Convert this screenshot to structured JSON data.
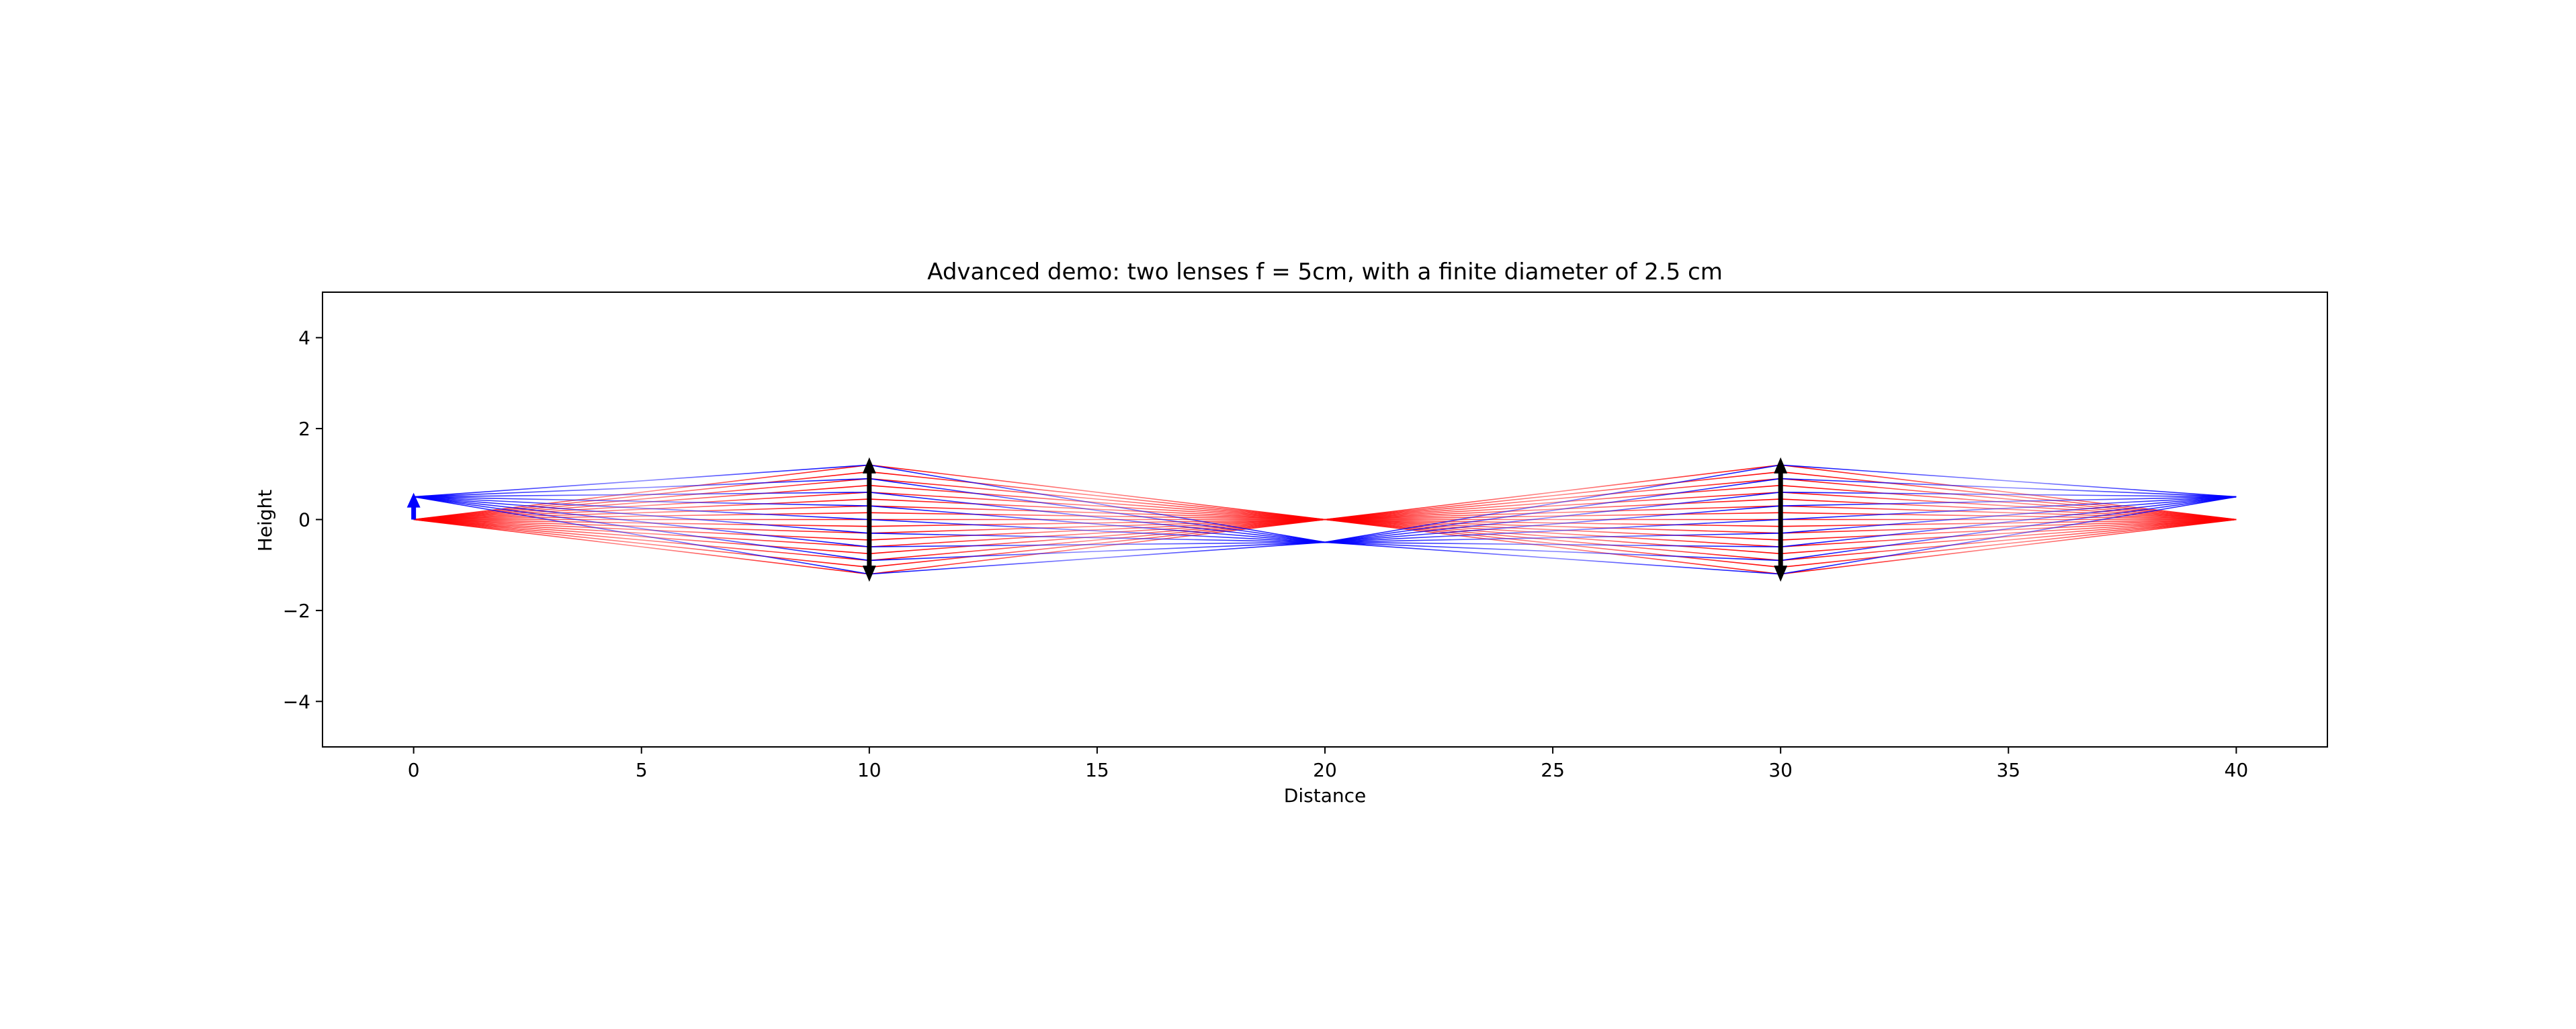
{
  "chart_data": {
    "type": "line",
    "title": "Advanced demo: two lenses f = 5cm, with a finite diameter of 2.5 cm",
    "xlabel": "Distance",
    "ylabel": "Height",
    "xlim": [
      -2,
      42
    ],
    "ylim": [
      -5,
      5
    ],
    "xticks": [
      0,
      5,
      10,
      15,
      20,
      25,
      30,
      35,
      40
    ],
    "yticks": [
      -4,
      -2,
      0,
      2,
      4
    ],
    "xtick_labels": [
      "0",
      "5",
      "10",
      "15",
      "20",
      "25",
      "30",
      "35",
      "40"
    ],
    "ytick_labels": [
      "−4",
      "−2",
      "0",
      "2",
      "4"
    ],
    "grid": false,
    "object": {
      "x": 0,
      "y0": 0,
      "y1": 0.5,
      "color": "#0000ff"
    },
    "lenses": [
      {
        "x": 10,
        "half_diameter": 1.25,
        "color": "#000000"
      },
      {
        "x": 30,
        "half_diameter": 1.25,
        "color": "#000000"
      }
    ],
    "ray_groups": [
      {
        "name": "",
        "color": "#ff0000",
        "source_y": 0,
        "lens_heights": [
          -1.2,
          -0.9,
          -0.6,
          -0.3,
          0,
          0.3,
          0.6,
          0.9,
          1.2,
          -1.05,
          -0.75,
          -0.45,
          -0.15,
          0.15,
          0.45,
          0.75,
          1.05
        ],
        "points_x": [
          0,
          10,
          20,
          30,
          40
        ],
        "focus_y": [
          0,
          0
        ]
      },
      {
        "name": "",
        "color": "#0000ff",
        "source_y": 0.5,
        "lens_heights": [
          -1.2,
          -0.9,
          -0.6,
          -0.3,
          0,
          0.3,
          0.6,
          0.9,
          1.2
        ],
        "points_x": [
          0,
          10,
          20,
          30,
          40
        ],
        "focus_y": [
          -0.5,
          0.5
        ]
      }
    ]
  }
}
